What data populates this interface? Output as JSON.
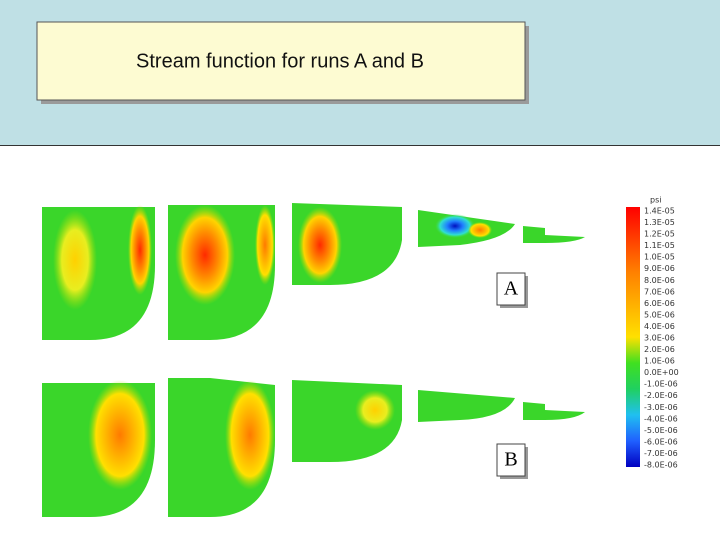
{
  "title": "Stream function for runs A and B",
  "colorbar": {
    "label": "psi",
    "ticks": [
      "1.4E-05",
      "1.3E-05",
      "1.2E-05",
      "1.1E-05",
      "1.0E-05",
      "9.0E-06",
      "8.0E-06",
      "7.0E-06",
      "6.0E-06",
      "5.0E-06",
      "4.0E-06",
      "3.0E-06",
      "2.0E-06",
      "1.0E-06",
      "0.0E+00",
      "-1.0E-06",
      "-2.0E-06",
      "-3.0E-06",
      "-4.0E-06",
      "-5.0E-06",
      "-6.0E-06",
      "-7.0E-06",
      "-8.0E-06"
    ]
  },
  "panels": [
    {
      "label": "A"
    },
    {
      "label": "B"
    }
  ]
}
